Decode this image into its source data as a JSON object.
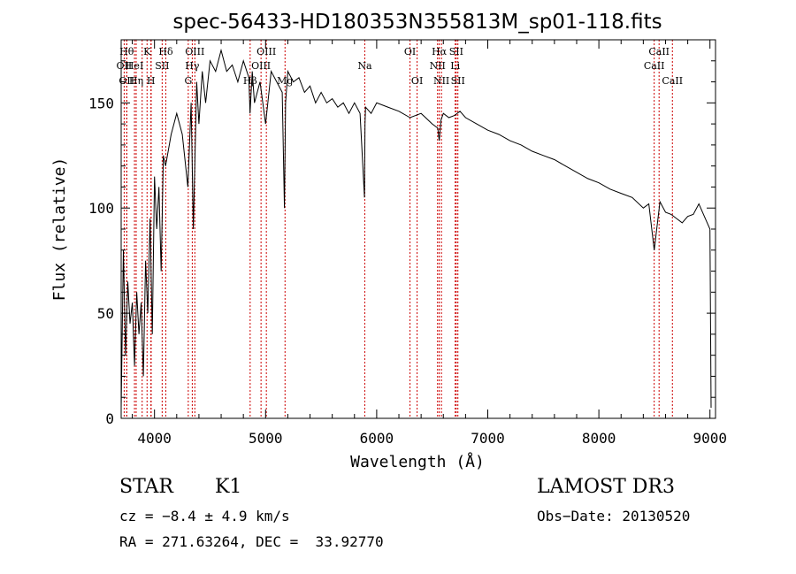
{
  "chart_data": {
    "type": "line",
    "title": "spec-56433-HD180353N355813M_sp01-118.fits",
    "xlabel": "Wavelength (Å)",
    "ylabel": "Flux (relative)",
    "xlim": [
      3700,
      9050
    ],
    "ylim": [
      0,
      180
    ],
    "x_ticks": [
      4000,
      5000,
      6000,
      7000,
      8000,
      9000
    ],
    "y_ticks": [
      0,
      50,
      100,
      150
    ],
    "grid": false,
    "line_color": "#000000",
    "marker_color": "#cc0000",
    "series": [
      {
        "x": [
          3700,
          3720,
          3740,
          3760,
          3780,
          3800,
          3820,
          3840,
          3860,
          3880,
          3900,
          3920,
          3940,
          3960,
          3980,
          4000,
          4020,
          4040,
          4060,
          4080,
          4100,
          4150,
          4200,
          4250,
          4300,
          4330,
          4350,
          4380,
          4400,
          4430,
          4460,
          4500,
          4550,
          4600,
          4650,
          4700,
          4750,
          4800,
          4850,
          4860,
          4880,
          4900,
          4950,
          5000,
          5050,
          5100,
          5150,
          5170,
          5180,
          5200,
          5250,
          5300,
          5350,
          5400,
          5450,
          5500,
          5550,
          5600,
          5650,
          5700,
          5750,
          5800,
          5850,
          5890,
          5895,
          5900,
          5950,
          6000,
          6100,
          6200,
          6300,
          6400,
          6500,
          6550,
          6563,
          6580,
          6600,
          6650,
          6700,
          6750,
          6800,
          6900,
          7000,
          7100,
          7200,
          7300,
          7400,
          7500,
          7600,
          7700,
          7800,
          7900,
          8000,
          8100,
          8200,
          8300,
          8400,
          8450,
          8498,
          8550,
          8600,
          8650,
          8700,
          8750,
          8800,
          8850,
          8900,
          8950,
          9000,
          9010
        ],
        "y": [
          5,
          80,
          30,
          65,
          45,
          55,
          25,
          60,
          40,
          55,
          20,
          75,
          50,
          95,
          40,
          115,
          90,
          110,
          70,
          125,
          120,
          135,
          145,
          135,
          110,
          150,
          90,
          160,
          140,
          165,
          150,
          170,
          165,
          175,
          165,
          168,
          160,
          170,
          162,
          145,
          165,
          150,
          160,
          140,
          165,
          160,
          155,
          100,
          150,
          165,
          160,
          162,
          155,
          158,
          150,
          155,
          150,
          152,
          148,
          150,
          145,
          150,
          145,
          105,
          140,
          148,
          145,
          150,
          148,
          146,
          143,
          145,
          140,
          138,
          132,
          142,
          145,
          143,
          144,
          146,
          143,
          140,
          137,
          135,
          132,
          130,
          127,
          125,
          123,
          120,
          117,
          114,
          112,
          109,
          107,
          105,
          100,
          102,
          80,
          103,
          98,
          97,
          95,
          93,
          96,
          97,
          102,
          96,
          90,
          5
        ]
      }
    ],
    "line_markers": [
      {
        "lambda": 3750,
        "label": "Hθ",
        "row": 1
      },
      {
        "lambda": 3727,
        "label": "OII",
        "row": 2
      },
      {
        "lambda": 3750,
        "label": "OII",
        "row": 3
      },
      {
        "lambda": 3820,
        "label": "HeI",
        "row": 2
      },
      {
        "lambda": 3835,
        "label": "Hη",
        "row": 3
      },
      {
        "lambda": 3889,
        "label": "",
        "row": 0
      },
      {
        "lambda": 3933,
        "label": "K",
        "row": 1
      },
      {
        "lambda": 3968,
        "label": "H",
        "row": 3
      },
      {
        "lambda": 3970,
        "label": "",
        "row": 0
      },
      {
        "lambda": 4069,
        "label": "SII",
        "row": 2
      },
      {
        "lambda": 4102,
        "label": "Hδ",
        "row": 1
      },
      {
        "lambda": 4304,
        "label": "G",
        "row": 3
      },
      {
        "lambda": 4340,
        "label": "Hγ",
        "row": 2
      },
      {
        "lambda": 4363,
        "label": "OIII",
        "row": 1
      },
      {
        "lambda": 4861,
        "label": "Hβ",
        "row": 3
      },
      {
        "lambda": 4959,
        "label": "OIII",
        "row": 2
      },
      {
        "lambda": 5007,
        "label": "OIII",
        "row": 1
      },
      {
        "lambda": 5175,
        "label": "Mg",
        "row": 3
      },
      {
        "lambda": 5893,
        "label": "Na",
        "row": 2
      },
      {
        "lambda": 6300,
        "label": "OI",
        "row": 1
      },
      {
        "lambda": 6364,
        "label": "OI",
        "row": 3
      },
      {
        "lambda": 6548,
        "label": "NII",
        "row": 2
      },
      {
        "lambda": 6563,
        "label": "Hα",
        "row": 1
      },
      {
        "lambda": 6583,
        "label": "NII",
        "row": 3
      },
      {
        "lambda": 6707,
        "label": "Li",
        "row": 2
      },
      {
        "lambda": 6716,
        "label": "SII",
        "row": 1
      },
      {
        "lambda": 6731,
        "label": "SII",
        "row": 3
      },
      {
        "lambda": 8498,
        "label": "CaII",
        "row": 2
      },
      {
        "lambda": 8542,
        "label": "CaII",
        "row": 1
      },
      {
        "lambda": 8662,
        "label": "CaII",
        "row": 3
      }
    ]
  },
  "info": {
    "class": "STAR",
    "subclass": "K1",
    "survey": "LAMOST DR3",
    "cz": "cz = −8.4 ± 4.9 km/s",
    "obs_date": "Obs−Date: 20130520",
    "coords": "RA = 271.63264, DEC =  33.92770"
  }
}
